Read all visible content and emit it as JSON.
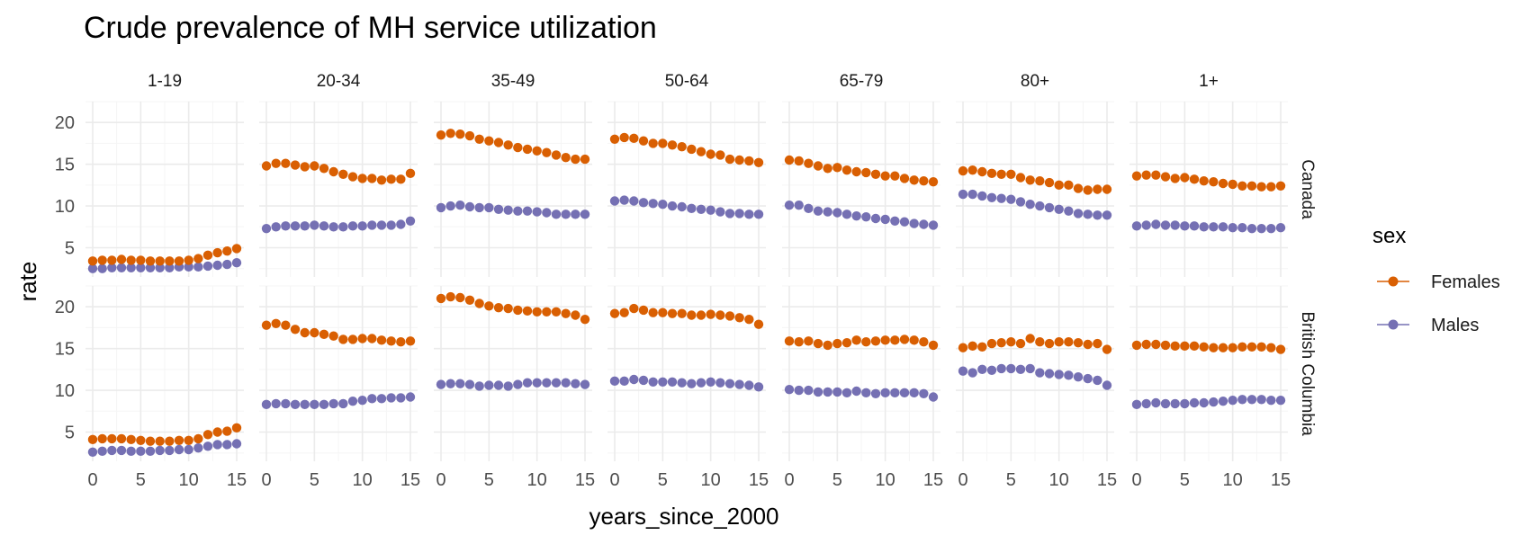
{
  "colors": {
    "Females": "#d95f02",
    "Males": "#7570b3",
    "grid_major": "#ebebeb",
    "grid_minor": "#f5f5f5"
  },
  "chart_data": {
    "type": "scatter",
    "title": "Crude prevalence of MH service utilization",
    "xlabel": "years_since_2000",
    "ylabel": "rate",
    "x": [
      0,
      1,
      2,
      3,
      4,
      5,
      6,
      7,
      8,
      9,
      10,
      11,
      12,
      13,
      14,
      15
    ],
    "xticks": [
      0,
      5,
      10,
      15
    ],
    "yticks": [
      5,
      10,
      15,
      20
    ],
    "ylim": [
      1.5,
      22.5
    ],
    "xlim": [
      -0.75,
      15.75
    ],
    "grid": true,
    "legend": {
      "title": "sex",
      "placement": "right",
      "entries": [
        "Females",
        "Males"
      ]
    },
    "columns": [
      "1-19",
      "20-34",
      "35-49",
      "50-64",
      "65-79",
      "80+",
      "1+"
    ],
    "rows": [
      "Canada",
      "British Columbia"
    ],
    "panels": [
      {
        "row": "Canada",
        "facets": [
          {
            "age": "1-19",
            "series": [
              {
                "name": "Females",
                "values": [
                  3.4,
                  3.5,
                  3.5,
                  3.6,
                  3.5,
                  3.5,
                  3.4,
                  3.4,
                  3.4,
                  3.4,
                  3.5,
                  3.7,
                  4.1,
                  4.4,
                  4.6,
                  4.9
                ]
              },
              {
                "name": "Males",
                "values": [
                  2.5,
                  2.5,
                  2.6,
                  2.6,
                  2.6,
                  2.6,
                  2.6,
                  2.6,
                  2.6,
                  2.7,
                  2.7,
                  2.7,
                  2.8,
                  2.9,
                  3.0,
                  3.2
                ]
              }
            ]
          },
          {
            "age": "20-34",
            "series": [
              {
                "name": "Females",
                "values": [
                  14.8,
                  15.1,
                  15.1,
                  14.9,
                  14.7,
                  14.8,
                  14.5,
                  14.1,
                  13.8,
                  13.5,
                  13.3,
                  13.3,
                  13.1,
                  13.2,
                  13.2,
                  13.9
                ]
              },
              {
                "name": "Males",
                "values": [
                  7.3,
                  7.5,
                  7.6,
                  7.6,
                  7.6,
                  7.7,
                  7.6,
                  7.5,
                  7.5,
                  7.6,
                  7.6,
                  7.7,
                  7.7,
                  7.7,
                  7.8,
                  8.2
                ]
              }
            ]
          },
          {
            "age": "35-49",
            "series": [
              {
                "name": "Females",
                "values": [
                  18.5,
                  18.7,
                  18.6,
                  18.4,
                  18.0,
                  17.8,
                  17.6,
                  17.3,
                  17.0,
                  16.8,
                  16.6,
                  16.4,
                  16.1,
                  15.8,
                  15.6,
                  15.6
                ]
              },
              {
                "name": "Males",
                "values": [
                  9.8,
                  10.0,
                  10.1,
                  9.9,
                  9.8,
                  9.8,
                  9.6,
                  9.5,
                  9.4,
                  9.4,
                  9.3,
                  9.2,
                  9.0,
                  9.0,
                  9.0,
                  9.0
                ]
              }
            ]
          },
          {
            "age": "50-64",
            "series": [
              {
                "name": "Females",
                "values": [
                  18.0,
                  18.2,
                  18.1,
                  17.8,
                  17.5,
                  17.5,
                  17.3,
                  17.1,
                  16.8,
                  16.5,
                  16.2,
                  16.1,
                  15.6,
                  15.5,
                  15.4,
                  15.2
                ]
              },
              {
                "name": "Males",
                "values": [
                  10.6,
                  10.7,
                  10.6,
                  10.4,
                  10.3,
                  10.2,
                  10.0,
                  9.9,
                  9.7,
                  9.6,
                  9.5,
                  9.3,
                  9.1,
                  9.1,
                  9.0,
                  9.0
                ]
              }
            ]
          },
          {
            "age": "65-79",
            "series": [
              {
                "name": "Females",
                "values": [
                  15.5,
                  15.4,
                  15.1,
                  14.8,
                  14.5,
                  14.6,
                  14.3,
                  14.1,
                  14.0,
                  13.8,
                  13.6,
                  13.6,
                  13.3,
                  13.1,
                  13.0,
                  12.9
                ]
              },
              {
                "name": "Males",
                "values": [
                  10.1,
                  10.1,
                  9.7,
                  9.4,
                  9.3,
                  9.2,
                  9.0,
                  8.8,
                  8.7,
                  8.5,
                  8.4,
                  8.2,
                  8.1,
                  7.9,
                  7.8,
                  7.7
                ]
              }
            ]
          },
          {
            "age": "80+",
            "series": [
              {
                "name": "Females",
                "values": [
                  14.2,
                  14.3,
                  14.1,
                  13.9,
                  13.8,
                  13.8,
                  13.4,
                  13.1,
                  13.0,
                  12.8,
                  12.5,
                  12.5,
                  12.1,
                  11.9,
                  12.0,
                  12.0
                ]
              },
              {
                "name": "Males",
                "values": [
                  11.4,
                  11.4,
                  11.2,
                  11.0,
                  10.9,
                  10.8,
                  10.5,
                  10.2,
                  10.0,
                  9.8,
                  9.6,
                  9.4,
                  9.1,
                  9.0,
                  8.9,
                  8.9
                ]
              }
            ]
          },
          {
            "age": "1+",
            "series": [
              {
                "name": "Females",
                "values": [
                  13.6,
                  13.7,
                  13.7,
                  13.5,
                  13.3,
                  13.4,
                  13.2,
                  13.0,
                  12.9,
                  12.7,
                  12.6,
                  12.4,
                  12.4,
                  12.3,
                  12.3,
                  12.4
                ]
              },
              {
                "name": "Males",
                "values": [
                  7.6,
                  7.7,
                  7.8,
                  7.7,
                  7.7,
                  7.6,
                  7.6,
                  7.5,
                  7.5,
                  7.5,
                  7.4,
                  7.4,
                  7.3,
                  7.3,
                  7.3,
                  7.4
                ]
              }
            ]
          }
        ]
      },
      {
        "row": "British Columbia",
        "facets": [
          {
            "age": "1-19",
            "series": [
              {
                "name": "Females",
                "values": [
                  4.1,
                  4.2,
                  4.2,
                  4.2,
                  4.1,
                  4.0,
                  3.9,
                  3.9,
                  3.9,
                  4.0,
                  4.0,
                  4.2,
                  4.7,
                  5.0,
                  5.1,
                  5.5
                ]
              },
              {
                "name": "Males",
                "values": [
                  2.6,
                  2.7,
                  2.8,
                  2.8,
                  2.7,
                  2.7,
                  2.7,
                  2.8,
                  2.8,
                  2.9,
                  2.9,
                  3.1,
                  3.3,
                  3.5,
                  3.5,
                  3.6
                ]
              }
            ]
          },
          {
            "age": "20-34",
            "series": [
              {
                "name": "Females",
                "values": [
                  17.8,
                  18.0,
                  17.8,
                  17.3,
                  16.9,
                  16.9,
                  16.7,
                  16.5,
                  16.1,
                  16.1,
                  16.2,
                  16.2,
                  16.0,
                  15.9,
                  15.8,
                  15.9
                ]
              },
              {
                "name": "Males",
                "values": [
                  8.3,
                  8.4,
                  8.4,
                  8.3,
                  8.3,
                  8.3,
                  8.3,
                  8.4,
                  8.4,
                  8.7,
                  8.8,
                  9.0,
                  9.0,
                  9.1,
                  9.1,
                  9.2
                ]
              }
            ]
          },
          {
            "age": "35-49",
            "series": [
              {
                "name": "Females",
                "values": [
                  21.0,
                  21.2,
                  21.1,
                  20.8,
                  20.4,
                  20.1,
                  19.9,
                  19.8,
                  19.6,
                  19.5,
                  19.4,
                  19.4,
                  19.4,
                  19.2,
                  19.0,
                  18.5
                ]
              },
              {
                "name": "Males",
                "values": [
                  10.7,
                  10.8,
                  10.8,
                  10.7,
                  10.5,
                  10.6,
                  10.6,
                  10.5,
                  10.7,
                  10.9,
                  10.9,
                  10.9,
                  10.9,
                  10.9,
                  10.8,
                  10.7
                ]
              }
            ]
          },
          {
            "age": "50-64",
            "series": [
              {
                "name": "Females",
                "values": [
                  19.2,
                  19.3,
                  19.8,
                  19.6,
                  19.3,
                  19.3,
                  19.2,
                  19.2,
                  19.0,
                  19.0,
                  19.1,
                  19.0,
                  18.9,
                  18.7,
                  18.5,
                  17.9
                ]
              },
              {
                "name": "Males",
                "values": [
                  11.1,
                  11.1,
                  11.3,
                  11.2,
                  11.0,
                  11.0,
                  11.0,
                  10.9,
                  10.8,
                  10.9,
                  11.0,
                  10.9,
                  10.8,
                  10.7,
                  10.6,
                  10.4
                ]
              }
            ]
          },
          {
            "age": "65-79",
            "series": [
              {
                "name": "Females",
                "values": [
                  15.9,
                  15.8,
                  15.9,
                  15.6,
                  15.4,
                  15.6,
                  15.7,
                  16.0,
                  15.8,
                  15.9,
                  16.0,
                  16.0,
                  16.1,
                  16.0,
                  15.8,
                  15.4
                ]
              },
              {
                "name": "Males",
                "values": [
                  10.1,
                  10.0,
                  10.0,
                  9.8,
                  9.8,
                  9.8,
                  9.7,
                  9.9,
                  9.7,
                  9.6,
                  9.7,
                  9.7,
                  9.7,
                  9.7,
                  9.6,
                  9.2
                ]
              }
            ]
          },
          {
            "age": "80+",
            "series": [
              {
                "name": "Females",
                "values": [
                  15.1,
                  15.3,
                  15.2,
                  15.6,
                  15.7,
                  15.8,
                  15.6,
                  16.2,
                  15.8,
                  15.6,
                  15.8,
                  15.8,
                  15.7,
                  15.5,
                  15.6,
                  14.9
                ]
              },
              {
                "name": "Males",
                "values": [
                  12.3,
                  12.1,
                  12.5,
                  12.4,
                  12.6,
                  12.6,
                  12.5,
                  12.6,
                  12.1,
                  12.0,
                  11.9,
                  11.8,
                  11.6,
                  11.4,
                  11.2,
                  10.6
                ]
              }
            ]
          },
          {
            "age": "1+",
            "series": [
              {
                "name": "Females",
                "values": [
                  15.4,
                  15.5,
                  15.5,
                  15.4,
                  15.3,
                  15.3,
                  15.3,
                  15.2,
                  15.1,
                  15.1,
                  15.1,
                  15.2,
                  15.2,
                  15.2,
                  15.1,
                  14.9
                ]
              },
              {
                "name": "Males",
                "values": [
                  8.3,
                  8.4,
                  8.5,
                  8.4,
                  8.4,
                  8.4,
                  8.5,
                  8.5,
                  8.6,
                  8.7,
                  8.8,
                  8.9,
                  8.9,
                  8.9,
                  8.8,
                  8.8
                ]
              }
            ]
          }
        ]
      }
    ]
  }
}
